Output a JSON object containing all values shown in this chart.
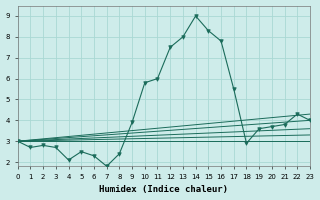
{
  "xlabel": "Humidex (Indice chaleur)",
  "background_color": "#ceecea",
  "grid_color": "#aad8d4",
  "line_color": "#1a6b5a",
  "xlim": [
    0,
    23
  ],
  "ylim": [
    1.8,
    9.5
  ],
  "xticks": [
    0,
    1,
    2,
    3,
    4,
    5,
    6,
    7,
    8,
    9,
    10,
    11,
    12,
    13,
    14,
    15,
    16,
    17,
    18,
    19,
    20,
    21,
    22,
    23
  ],
  "yticks": [
    2,
    3,
    4,
    5,
    6,
    7,
    8,
    9
  ],
  "main_curve": [
    3.0,
    2.7,
    2.8,
    2.7,
    2.1,
    2.5,
    2.3,
    1.8,
    2.4,
    3.9,
    5.8,
    6.0,
    7.5,
    8.0,
    9.0,
    8.3,
    7.8,
    5.5,
    2.9,
    3.6,
    3.7,
    3.8,
    4.3,
    4.0
  ],
  "straight_lines": [
    {
      "x0": 0,
      "y0": 3.0,
      "x1": 23,
      "y1": 3.0
    },
    {
      "x0": 0,
      "y0": 3.0,
      "x1": 23,
      "y1": 3.3
    },
    {
      "x0": 0,
      "y0": 3.0,
      "x1": 23,
      "y1": 3.6
    },
    {
      "x0": 0,
      "y0": 3.0,
      "x1": 23,
      "y1": 4.0
    },
    {
      "x0": 0,
      "y0": 3.0,
      "x1": 23,
      "y1": 4.3
    }
  ]
}
